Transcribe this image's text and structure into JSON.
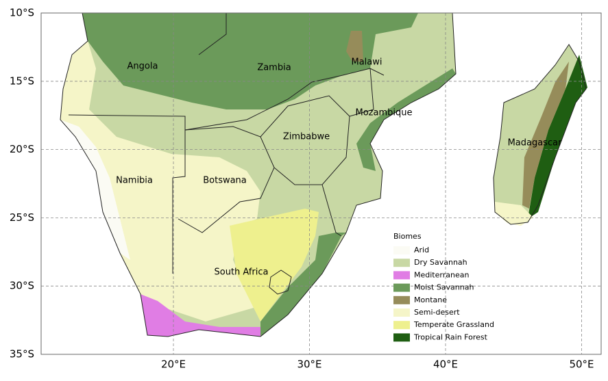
{
  "map": {
    "lat_labels": [
      "10°S",
      "15°S",
      "20°S",
      "25°S",
      "30°S",
      "35°S"
    ],
    "lon_labels": [
      "20°E",
      "30°E",
      "40°E",
      "50°E"
    ],
    "countries": [
      "Angola",
      "Zambia",
      "Malawi",
      "Mozambique",
      "Zimbabwe",
      "Madagascar",
      "Namibia",
      "Botswana",
      "South Africa"
    ]
  },
  "legend": {
    "title": "Biomes",
    "items": [
      {
        "label": "Arid",
        "color": "#fbfbf4"
      },
      {
        "label": "Dry Savannah",
        "color": "#c8d8a4"
      },
      {
        "label": "Mediterranean",
        "color": "#e07de4"
      },
      {
        "label": "Moist Savannah",
        "color": "#6b9a5a"
      },
      {
        "label": "Montane",
        "color": "#968c5a"
      },
      {
        "label": "Semi-desert",
        "color": "#f5f5c8"
      },
      {
        "label": "Temperate Grassland",
        "color": "#eef08e"
      },
      {
        "label": "Tropical Rain Forest",
        "color": "#1f5e12"
      }
    ]
  }
}
